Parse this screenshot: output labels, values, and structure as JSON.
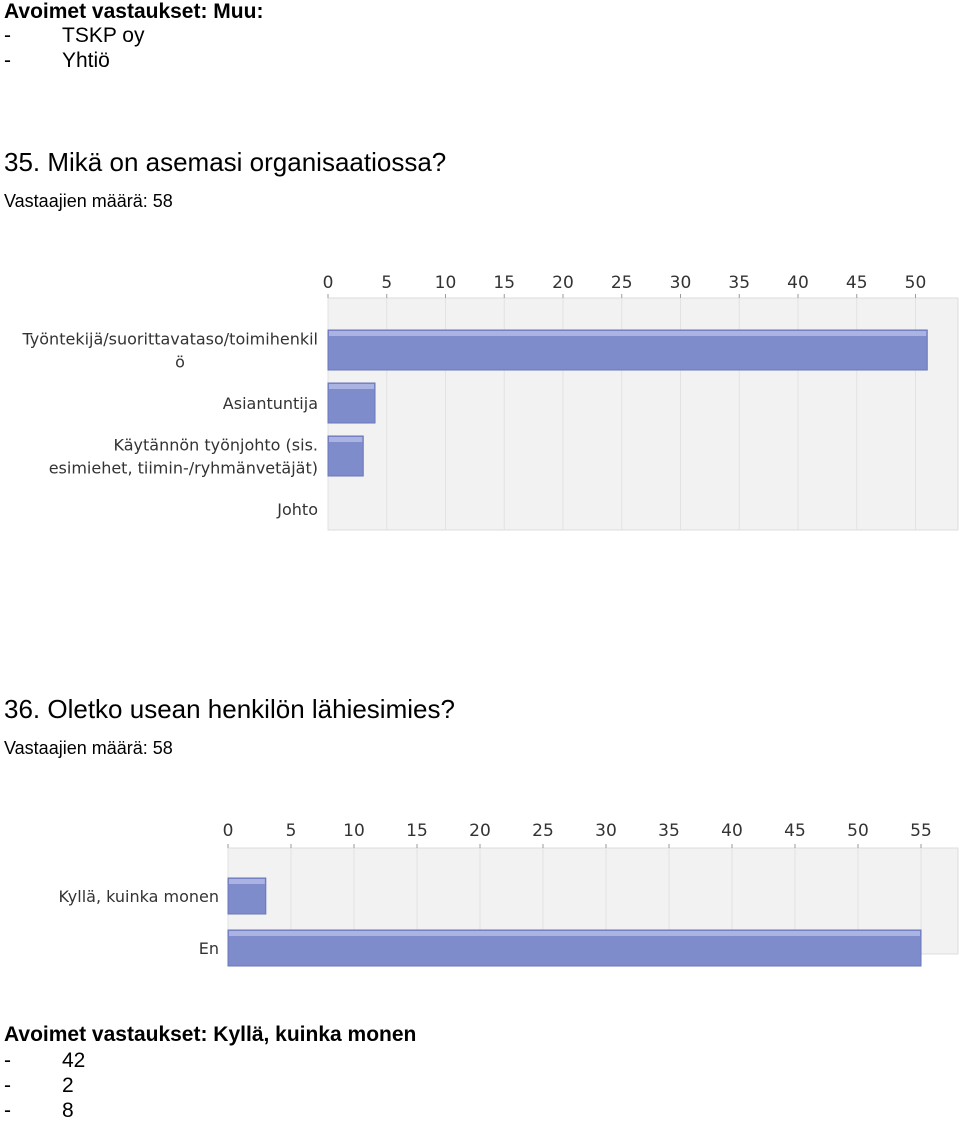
{
  "top_section": {
    "heading": "Avoimet vastaukset: Muu:",
    "items": [
      "TSKP oy",
      "Yhtiö"
    ],
    "dash": "-"
  },
  "questions": [
    {
      "title": "35. Mikä on asemasi organisaatiossa?",
      "respondents": "Vastaajien määrä: 58"
    },
    {
      "title": "36. Oletko usean henkilön lähiesimies?",
      "respondents": "Vastaajien määrä: 58"
    }
  ],
  "bottom_section": {
    "heading": "Avoimet vastaukset: Kyllä, kuinka monen",
    "items": [
      "42",
      "2",
      "8"
    ],
    "dash": "-"
  },
  "colors": {
    "bar": "#7f8ccc",
    "bar_top": "#aab3e2",
    "plot_bg": "#f2f2f2",
    "grid": "#ffffff",
    "axis_text": "#333333"
  },
  "chart_data": [
    {
      "type": "bar",
      "orientation": "horizontal",
      "categories": [
        [
          "Työntekijä/suorittavataso/toimihenkil",
          "ö"
        ],
        [
          "Asiantuntija"
        ],
        [
          "Käytännön työnjohto (sis.",
          "esimiehet, tiimin-/ryhmänvetäjät)"
        ],
        [
          "Johto"
        ]
      ],
      "values": [
        51,
        4,
        3,
        0
      ],
      "xlim": [
        0,
        54
      ],
      "xticks": [
        0,
        5,
        10,
        15,
        20,
        25,
        30,
        35,
        40,
        45,
        50
      ],
      "axis_position": "top",
      "grid": true
    },
    {
      "type": "bar",
      "orientation": "horizontal",
      "categories": [
        [
          "Kyllä, kuinka monen"
        ],
        [
          "En"
        ]
      ],
      "values": [
        3,
        55
      ],
      "xlim": [
        0,
        58
      ],
      "xticks": [
        0,
        5,
        10,
        15,
        20,
        25,
        30,
        35,
        40,
        45,
        50,
        55
      ],
      "axis_position": "top",
      "grid": true
    }
  ]
}
